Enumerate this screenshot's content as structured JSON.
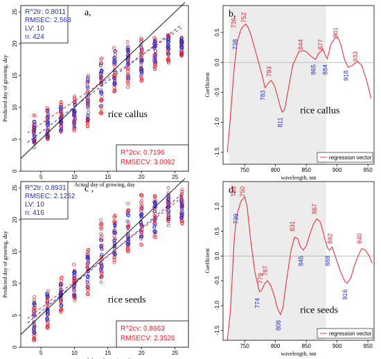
{
  "colors": {
    "blue": "#1f2fd6",
    "red": "#e8202a",
    "shade": "#ececec",
    "curve": "#e8303a"
  },
  "chart_data": [
    {
      "type": "scatter",
      "panel": "a,",
      "annotation": "rice callus",
      "xlabel": "Actual day of growing, day",
      "ylabel": "Predicted day of growing, day",
      "xlim": [
        2,
        27
      ],
      "ylim": [
        0,
        26
      ],
      "xticks": [
        5,
        10,
        15,
        20,
        25
      ],
      "yticks": [
        0,
        5,
        10,
        15,
        20,
        25
      ],
      "stats_train": {
        "r2": "R^2tr: 0.8011",
        "rmse": "RMSEC: 2.563",
        "lv": "LV: 10",
        "n": "n: 424"
      },
      "stats_cv": {
        "r2": "R^2cv: 0.7196",
        "rmse": "RMSECV: 3.0092"
      },
      "days": [
        4,
        6,
        8,
        10,
        12,
        14,
        16,
        18,
        20,
        22,
        24,
        26
      ],
      "cv_ranges": [
        [
          4,
          9
        ],
        [
          5,
          10.5
        ],
        [
          6,
          11
        ],
        [
          6,
          12
        ],
        [
          7,
          16
        ],
        [
          9,
          18
        ],
        [
          12,
          19.5
        ],
        [
          13,
          20.5
        ],
        [
          14,
          21
        ],
        [
          16,
          21
        ],
        [
          17,
          21.5
        ],
        [
          18,
          21
        ]
      ],
      "tr_ranges": [
        [
          3.5,
          8
        ],
        [
          5,
          10
        ],
        [
          6,
          10.5
        ],
        [
          7,
          11
        ],
        [
          8,
          15
        ],
        [
          10,
          17
        ],
        [
          13,
          19
        ],
        [
          14,
          20
        ],
        [
          15,
          20
        ],
        [
          17,
          20.5
        ],
        [
          18,
          21
        ],
        [
          18,
          21
        ]
      ],
      "fit_train": {
        "x": [
          3,
          26
        ],
        "y": [
          4.5,
          23
        ]
      },
      "fit_cv": {
        "x": [
          3,
          26
        ],
        "y": [
          6,
          22.5
        ]
      }
    },
    {
      "type": "line",
      "panel": "b,",
      "annotation": "rice callus",
      "xlabel": "wavelength, nm",
      "ylabel": "Coefficient",
      "legend": "regression vector",
      "xlim": [
        715,
        960
      ],
      "ylim": [
        -1.7,
        0.95
      ],
      "shade": [
        725,
        882
      ],
      "xticks": [
        750,
        800,
        850,
        900,
        950
      ],
      "yticks": [
        -1.5,
        -1.0,
        -0.5,
        0.0,
        0.5
      ],
      "curve": {
        "x": [
          722,
          727,
          733,
          738,
          744,
          749,
          752,
          756,
          762,
          770,
          778,
          783,
          788,
          793,
          798,
          803,
          808,
          811,
          815,
          820,
          828,
          838,
          844,
          850,
          858,
          865,
          870,
          877,
          882,
          884,
          890,
          896,
          901,
          906,
          912,
          918,
          925,
          933,
          940,
          948,
          955
        ],
        "y": [
          -1.5,
          -0.9,
          -0.1,
          0.35,
          0.55,
          0.62,
          0.64,
          0.58,
          0.4,
          0.1,
          -0.2,
          -0.42,
          -0.35,
          -0.3,
          -0.38,
          -0.55,
          -0.75,
          -0.83,
          -0.78,
          -0.5,
          -0.05,
          0.18,
          0.2,
          0.18,
          0.1,
          0.05,
          0.15,
          0.22,
          0.1,
          0.06,
          0.3,
          0.4,
          0.42,
          0.3,
          0.05,
          -0.08,
          -0.05,
          0.02,
          -0.05,
          -0.3,
          -0.6
        ]
      },
      "labels": [
        {
          "t": "736",
          "x": 736,
          "y": 0.66,
          "c": "red"
        },
        {
          "t": "738",
          "x": 738,
          "y": 0.3,
          "c": "blue"
        },
        {
          "t": "752",
          "x": 752,
          "y": 0.75,
          "c": "red"
        },
        {
          "t": "783",
          "x": 783,
          "y": -0.55,
          "c": "blue"
        },
        {
          "t": "793",
          "x": 793,
          "y": -0.15,
          "c": "red"
        },
        {
          "t": "811",
          "x": 811,
          "y": -1.0,
          "c": "blue"
        },
        {
          "t": "844",
          "x": 844,
          "y": 0.3,
          "c": "red"
        },
        {
          "t": "865",
          "x": 865,
          "y": -0.12,
          "c": "blue"
        },
        {
          "t": "877",
          "x": 877,
          "y": 0.3,
          "c": "red"
        },
        {
          "t": "884",
          "x": 884,
          "y": -0.12,
          "c": "blue"
        },
        {
          "t": "901",
          "x": 901,
          "y": 0.5,
          "c": "red"
        },
        {
          "t": "918",
          "x": 918,
          "y": -0.22,
          "c": "blue"
        },
        {
          "t": "933",
          "x": 933,
          "y": 0.1,
          "c": "red"
        }
      ]
    },
    {
      "type": "scatter",
      "panel": "c ,",
      "annotation": "rice seeds",
      "xlabel": "Actual day of growing, day",
      "ylabel": "Predicted day of growing, day",
      "xlim": [
        2,
        27
      ],
      "ylim": [
        0,
        26
      ],
      "xticks": [
        5,
        10,
        15,
        20,
        25
      ],
      "yticks": [
        0,
        5,
        10,
        15,
        20,
        25
      ],
      "stats_train": {
        "r2": "R^2tr: 0.8931",
        "rmse": "RMSEC: 2.1252",
        "lv": "LV: 10",
        "n": "n: 416"
      },
      "stats_cv": {
        "r2": "R^2cv: 0.8663",
        "rmse": "RMSECV: 2.3526"
      },
      "days": [
        4,
        6,
        8,
        10,
        12,
        14,
        16,
        18,
        20,
        22,
        24,
        26
      ],
      "cv_ranges": [
        [
          1,
          8
        ],
        [
          3,
          9
        ],
        [
          5,
          11
        ],
        [
          7,
          13
        ],
        [
          8,
          16
        ],
        [
          10,
          20
        ],
        [
          13,
          21
        ],
        [
          15,
          23
        ],
        [
          16,
          24
        ],
        [
          17,
          24
        ],
        [
          19,
          25
        ],
        [
          19,
          25
        ]
      ],
      "tr_ranges": [
        [
          2,
          7
        ],
        [
          4,
          8.5
        ],
        [
          6,
          10
        ],
        [
          8,
          12
        ],
        [
          9,
          15
        ],
        [
          11,
          18
        ],
        [
          14,
          20
        ],
        [
          16,
          21
        ],
        [
          17,
          22
        ],
        [
          18,
          23
        ],
        [
          20,
          24
        ],
        [
          20,
          24
        ]
      ],
      "fit_train": {
        "x": [
          3,
          26
        ],
        "y": [
          3.8,
          24
        ]
      },
      "fit_cv": {
        "x": [
          3,
          26
        ],
        "y": [
          4.5,
          23.5
        ]
      }
    },
    {
      "type": "line",
      "panel": "d,",
      "annotation": "rice seeds",
      "xlabel": "wavelength, nm",
      "ylabel": "Coefficient",
      "legend": "regression vector",
      "xlim": [
        715,
        960
      ],
      "ylim": [
        -1.7,
        1.5
      ],
      "shade": [
        725,
        882
      ],
      "xticks": [
        750,
        800,
        850,
        900,
        950
      ],
      "yticks": [
        -1.5,
        -1.0,
        -0.5,
        0.0,
        0.5,
        1.0
      ],
      "curve": {
        "x": [
          722,
          727,
          733,
          736,
          739,
          744,
          750,
          754,
          760,
          767,
          774,
          777,
          779,
          783,
          787,
          792,
          798,
          803,
          808,
          812,
          818,
          825,
          831,
          836,
          840,
          845,
          850,
          856,
          862,
          867,
          872,
          876,
          880,
          885,
          888,
          892,
          897,
          905,
          912,
          916,
          922,
          928,
          934,
          940,
          946,
          952,
          957
        ],
        "y": [
          -1.7,
          -1.1,
          0.3,
          0.7,
          0.9,
          1.1,
          1.2,
          1.0,
          0.3,
          -0.35,
          -0.72,
          -0.7,
          -0.65,
          -0.55,
          -0.5,
          -0.58,
          -0.8,
          -1.05,
          -1.18,
          -1.05,
          -0.5,
          0.1,
          0.38,
          0.35,
          0.2,
          0.12,
          0.2,
          0.45,
          0.65,
          0.75,
          0.7,
          0.55,
          0.35,
          0.15,
          0.12,
          0.18,
          0.0,
          -0.3,
          -0.5,
          -0.55,
          -0.45,
          -0.2,
          0.0,
          0.15,
          0.12,
          0.0,
          -0.15
        ]
      },
      "labels": [
        {
          "t": "736",
          "x": 736,
          "y": 1.3,
          "c": "red"
        },
        {
          "t": "739",
          "x": 739,
          "y": 0.75,
          "c": "blue"
        },
        {
          "t": "750",
          "x": 750,
          "y": 1.3,
          "c": "red"
        },
        {
          "t": "774",
          "x": 774,
          "y": -0.95,
          "c": "blue"
        },
        {
          "t": "779",
          "x": 779,
          "y": -0.45,
          "c": "red"
        },
        {
          "t": "787",
          "x": 787,
          "y": -0.3,
          "c": "red"
        },
        {
          "t": "808",
          "x": 808,
          "y": -1.4,
          "c": "blue"
        },
        {
          "t": "831",
          "x": 831,
          "y": 0.6,
          "c": "red"
        },
        {
          "t": "845",
          "x": 845,
          "y": -0.1,
          "c": "blue"
        },
        {
          "t": "867",
          "x": 867,
          "y": 0.95,
          "c": "red"
        },
        {
          "t": "888",
          "x": 888,
          "y": -0.1,
          "c": "blue"
        },
        {
          "t": "892",
          "x": 892,
          "y": 0.35,
          "c": "red"
        },
        {
          "t": "916",
          "x": 916,
          "y": -0.78,
          "c": "blue"
        },
        {
          "t": "940",
          "x": 940,
          "y": 0.35,
          "c": "red"
        }
      ]
    }
  ]
}
